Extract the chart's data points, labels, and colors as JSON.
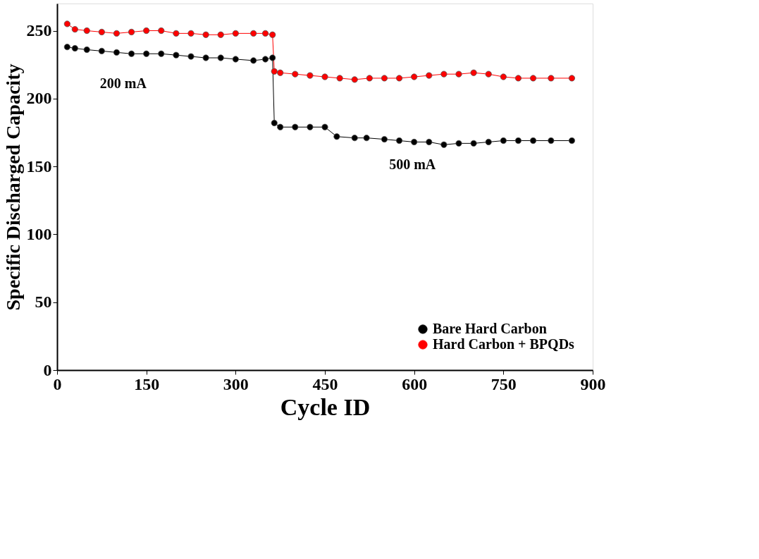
{
  "chart_data": {
    "type": "line",
    "xlabel": "Cycle ID",
    "ylabel": "Specific Discharged Capacity",
    "xlim": [
      0,
      900
    ],
    "xticks": [
      0,
      150,
      300,
      450,
      600,
      750,
      900
    ],
    "ylim": [
      0,
      270
    ],
    "yticks": [
      0,
      50,
      100,
      150,
      200,
      250
    ],
    "grid": false,
    "legend": "bottom right",
    "marker": "circle",
    "line_style": "solid",
    "series": [
      {
        "name": "Bare Hard Carbon",
        "color": "#000000",
        "x": [
          17,
          30,
          50,
          75,
          100,
          125,
          150,
          175,
          200,
          225,
          250,
          275,
          300,
          330,
          350,
          362,
          365,
          375,
          400,
          425,
          450,
          470,
          500,
          520,
          550,
          575,
          600,
          625,
          650,
          675,
          700,
          725,
          750,
          775,
          800,
          830,
          865
        ],
        "values": [
          238,
          237,
          236,
          235,
          234,
          233,
          233,
          233,
          232,
          231,
          230,
          230,
          229,
          228,
          229,
          230,
          182,
          179,
          179,
          179,
          179,
          172,
          171,
          171,
          170,
          169,
          168,
          168,
          166,
          167,
          167,
          168,
          169,
          169,
          169,
          169,
          169
        ]
      },
      {
        "name": "Hard Carbon + BPQDs",
        "color": "#ff0000",
        "x": [
          17,
          30,
          50,
          75,
          100,
          125,
          150,
          175,
          200,
          225,
          250,
          275,
          300,
          330,
          350,
          362,
          365,
          375,
          400,
          425,
          450,
          475,
          500,
          525,
          550,
          575,
          600,
          625,
          650,
          675,
          700,
          725,
          750,
          775,
          800,
          830,
          865
        ],
        "values": [
          255,
          251,
          250,
          249,
          248,
          249,
          250,
          250,
          248,
          248,
          247,
          247,
          248,
          248,
          248,
          247,
          220,
          219,
          218,
          217,
          216,
          215,
          214,
          215,
          215,
          215,
          216,
          217,
          218,
          218,
          219,
          218,
          216,
          215,
          215,
          215,
          215
        ]
      }
    ],
    "annotations": [
      "200 mA",
      "500 mA"
    ]
  }
}
